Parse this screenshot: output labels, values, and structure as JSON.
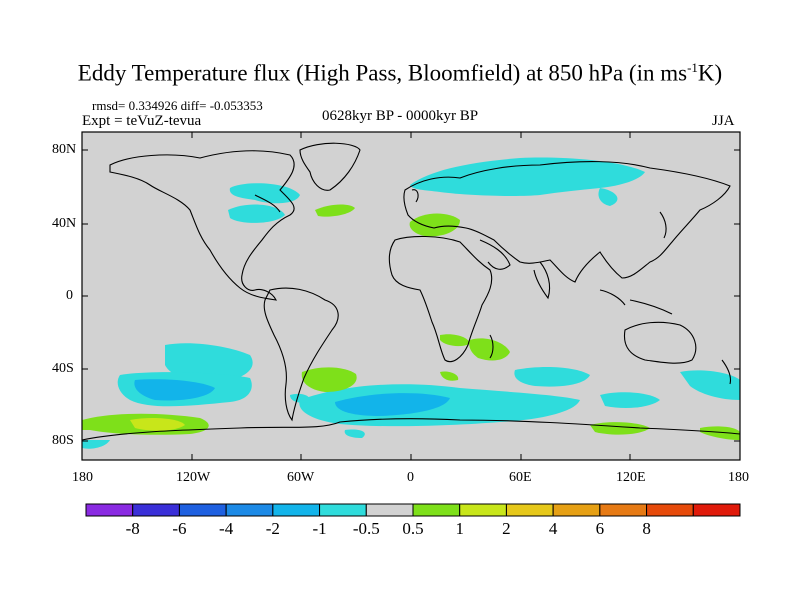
{
  "title": {
    "main": "Eddy Temperature flux (High Pass, Bloomfield) at 850 hPa (in ms",
    "sup": "-1",
    "end": "K)"
  },
  "stats": "rmsd= 0.334926 diff= -0.053353",
  "expt": "Expt = teVuZ-tevua",
  "period": "0628kyr BP - 0000kyr BP",
  "season": "JJA",
  "y_axis_labels": [
    "80N",
    "40N",
    "0",
    "40S",
    "80S"
  ],
  "x_axis_labels": [
    "180",
    "120W",
    "60W",
    "0",
    "60E",
    "120E",
    "180"
  ],
  "colorbar": {
    "colors": [
      "#8a2be2",
      "#3a2fd8",
      "#1e60e0",
      "#1c8ae6",
      "#12b4ea",
      "#2fdcdc",
      "#d2d2d2",
      "#7ee01a",
      "#c8e61a",
      "#e6c81a",
      "#e6a014",
      "#e67a14",
      "#e64a0a",
      "#e01a0a"
    ],
    "labels": [
      "-8",
      "-6",
      "-4",
      "-2",
      "-1",
      "-0.5",
      "0.5",
      "1",
      "2",
      "4",
      "6",
      "8"
    ]
  },
  "colors": {
    "land_ocean_background": "#d2d2d2",
    "negative_small": "#2fdcdc",
    "negative_mid": "#12b4ea",
    "positive_small": "#7ee01a",
    "positive_mid": "#c8e61a"
  }
}
